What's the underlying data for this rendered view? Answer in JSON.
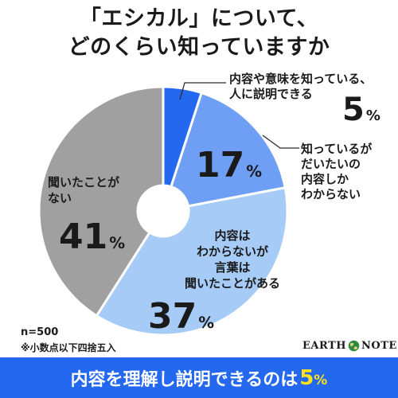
{
  "title": {
    "line1": "「エシカル」について、",
    "line2": "どのくらい知っていますか"
  },
  "chart_data": {
    "type": "pie",
    "title": "「エシカル」について、どのくらい知っていますか",
    "unit": "%",
    "slices": [
      {
        "label": "内容や意味を知っている、人に説明できる",
        "label_lines": [
          "内容や意味を知っている、",
          "人に説明できる"
        ],
        "value": 5,
        "color": "#2468f0"
      },
      {
        "label": "知っているがだいたいの内容しかわからない",
        "label_lines": [
          "知っているが",
          "だいたいの",
          "内容しか",
          "わからない"
        ],
        "value": 17,
        "color": "#6f9ff5"
      },
      {
        "label": "内容はわからないが言葉は聞いたことがある",
        "label_lines": [
          "内容は",
          "わからないが",
          "言葉は",
          "聞いたことがある"
        ],
        "value": 37,
        "color": "#a6cbf7"
      },
      {
        "label": "聞いたことがない",
        "label_lines": [
          "聞いたことが",
          "ない"
        ],
        "value": 41,
        "color": "#a0a0a0"
      }
    ],
    "label_colors": [
      "#ffffff",
      "#1a1a1a",
      "#1a1a1a",
      "#1a1a1a"
    ],
    "donut_hole": true
  },
  "footnote": {
    "n": "n=500",
    "rounding": "※小数点以下四捨五入"
  },
  "logo": {
    "text_left": "EARTH",
    "text_right": "NOTE",
    "icon": "globe-icon"
  },
  "banner": {
    "text": "内容を理解し説明できるのは",
    "value": "5",
    "unit": "%",
    "highlight_color": "#ffe11a",
    "background": "#2468f0"
  }
}
